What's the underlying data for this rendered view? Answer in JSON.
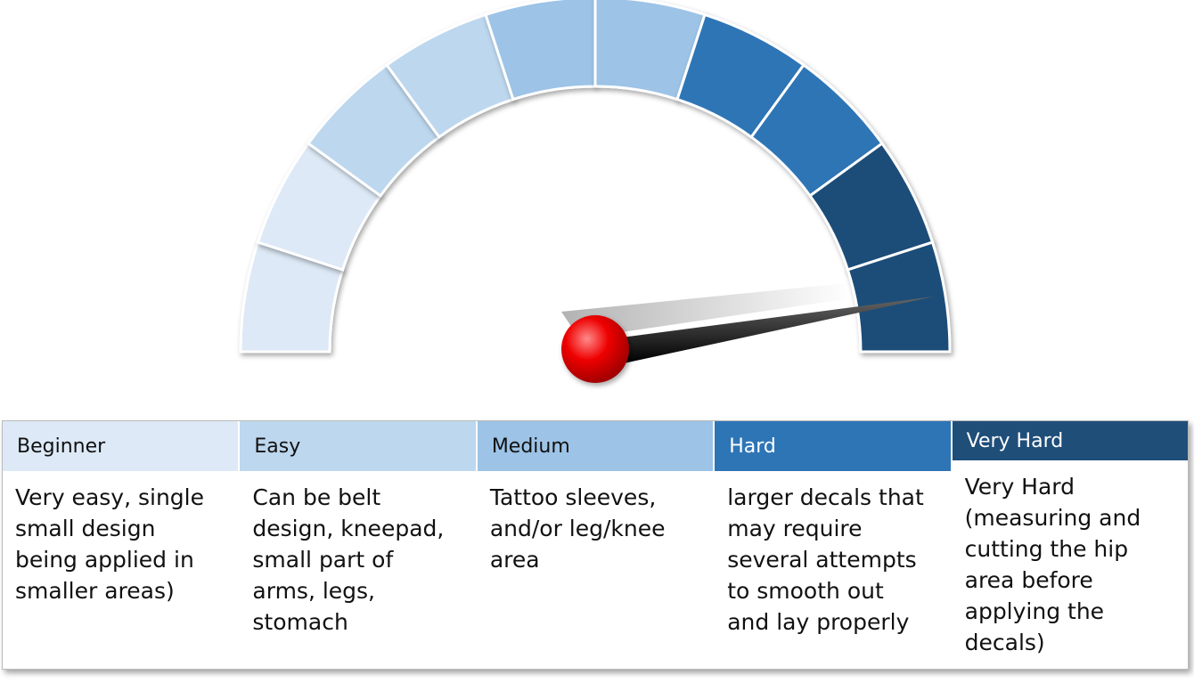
{
  "levels": [
    {
      "name": "Beginner",
      "description": [
        "Very easy, single",
        "small design",
        "being applied in",
        "smaller areas)"
      ]
    },
    {
      "name": "Easy",
      "description": [
        "Can be belt",
        "design, kneepad,",
        "small part of",
        "arms, legs,",
        "stomach"
      ]
    },
    {
      "name": "Medium",
      "description": [
        "Tattoo sleeves,",
        "and/or leg/knee",
        "area"
      ]
    },
    {
      "name": "Hard",
      "description": [
        "larger decals that",
        "may require",
        "several attempts",
        "to smooth out",
        "and lay properly"
      ]
    },
    {
      "name": "Very Hard",
      "description": [
        "Very Hard",
        "(measuring and",
        "cutting the hip",
        "area before",
        "applying the",
        "decals)"
      ]
    }
  ]
}
